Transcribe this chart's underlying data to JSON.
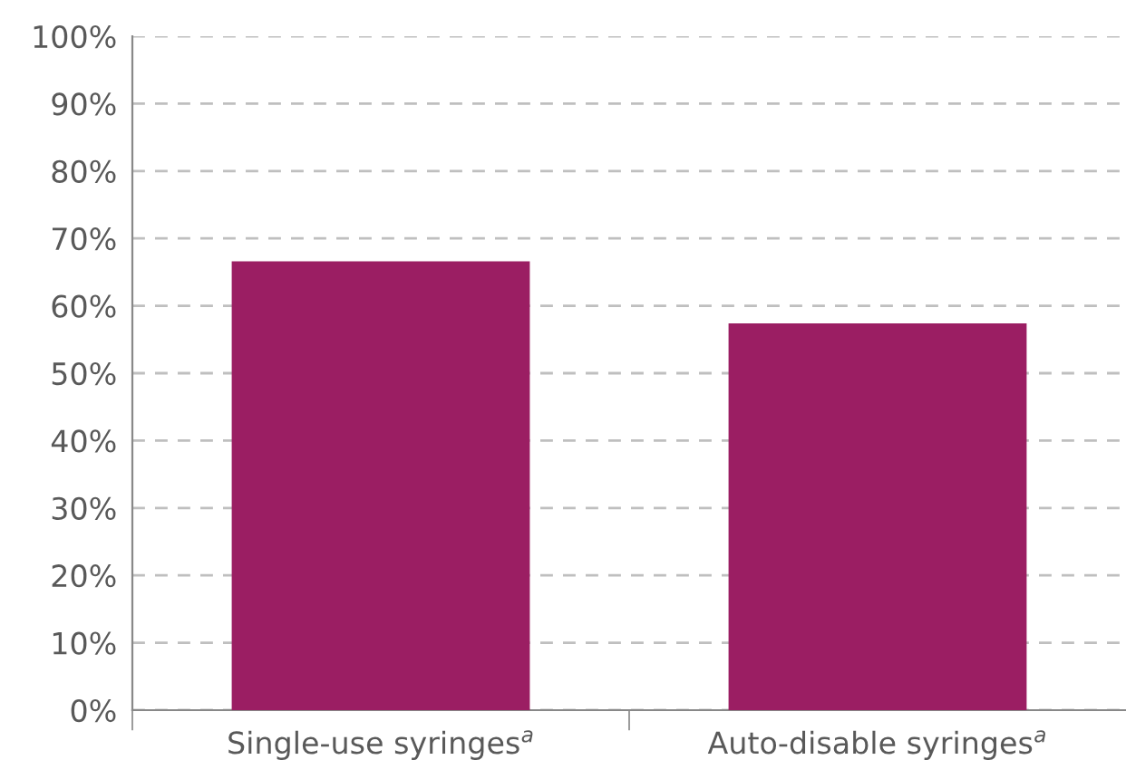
{
  "chart_data": {
    "type": "bar",
    "categories": [
      "Single-use syringes$^{a}$",
      "Auto-disable syringes$^{a}$"
    ],
    "values": [
      66.6,
      57.4
    ],
    "color": "#9b1e63",
    "ylim": [
      0,
      100
    ],
    "yticks": [
      {
        "value": 0,
        "label": "0%"
      },
      {
        "value": 10,
        "label": "10%"
      },
      {
        "value": 20,
        "label": "20%"
      },
      {
        "value": 30,
        "label": "30%"
      },
      {
        "value": 40,
        "label": "40%"
      },
      {
        "value": 50,
        "label": "50%"
      },
      {
        "value": 60,
        "label": "60%"
      },
      {
        "value": 70,
        "label": "70%"
      },
      {
        "value": 80,
        "label": "80%"
      },
      {
        "value": 90,
        "label": "90%"
      },
      {
        "value": 100,
        "label": "100%"
      }
    ],
    "grid": "y"
  }
}
